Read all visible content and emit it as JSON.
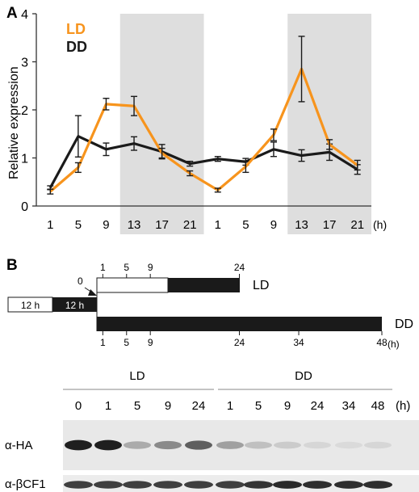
{
  "panel_a": {
    "label": "A",
    "ylabel": "Relative expression",
    "unit_label": "(h)",
    "legend": [
      {
        "name": "LD",
        "color": "#f7941d"
      },
      {
        "name": "DD",
        "color": "#1a1a1a"
      }
    ]
  },
  "chart_data": {
    "type": "line",
    "categories": [
      "1",
      "5",
      "9",
      "13",
      "17",
      "21",
      "1",
      "5",
      "9",
      "13",
      "17",
      "21"
    ],
    "ylabel": "Relative expression",
    "ylim": [
      0,
      4
    ],
    "yticks": [
      "0",
      "1",
      "2",
      "3",
      "4"
    ],
    "shaded_intervals": [
      [
        3,
        5
      ],
      [
        9,
        11
      ]
    ],
    "shade_color": "#dedede",
    "series": [
      {
        "name": "LD",
        "color": "#f7941d",
        "values": [
          0.3,
          0.8,
          2.12,
          2.08,
          1.1,
          0.68,
          0.33,
          0.82,
          1.48,
          2.85,
          1.28,
          0.85
        ],
        "err": [
          0.05,
          0.1,
          0.12,
          0.2,
          0.1,
          0.05,
          0.04,
          0.12,
          0.12,
          0.68,
          0.1,
          0.1
        ]
      },
      {
        "name": "DD",
        "color": "#1a1a1a",
        "values": [
          0.38,
          1.45,
          1.18,
          1.3,
          1.13,
          0.88,
          0.98,
          0.92,
          1.18,
          1.05,
          1.12,
          0.76
        ],
        "err": [
          0.04,
          0.43,
          0.13,
          0.14,
          0.15,
          0.05,
          0.05,
          0.07,
          0.15,
          0.12,
          0.17,
          0.1
        ]
      }
    ]
  },
  "panel_b": {
    "label": "B",
    "pre_light": "12 h",
    "pre_dark": "12 h",
    "zero_label": "0",
    "ld_label": "LD",
    "dd_label": "DD",
    "unit_label": "(h)",
    "ld_ticks": [
      "1",
      "5",
      "9",
      "24"
    ],
    "dd_ticks": [
      "1",
      "5",
      "9",
      "24",
      "34",
      "48"
    ]
  },
  "blot": {
    "group_ld": "LD",
    "group_dd": "DD",
    "lanes": [
      "0",
      "1",
      "5",
      "9",
      "24",
      "1",
      "5",
      "9",
      "24",
      "34",
      "48"
    ],
    "unit_label": "(h)",
    "row_labels": [
      "α-HA",
      "α-βCF1"
    ],
    "ha_intensity": [
      0.95,
      0.95,
      0.3,
      0.45,
      0.65,
      0.35,
      0.2,
      0.15,
      0.1,
      0.08,
      0.1
    ],
    "cf1_intensity": [
      0.8,
      0.8,
      0.8,
      0.8,
      0.8,
      0.8,
      0.85,
      0.9,
      0.88,
      0.88,
      0.88
    ]
  }
}
